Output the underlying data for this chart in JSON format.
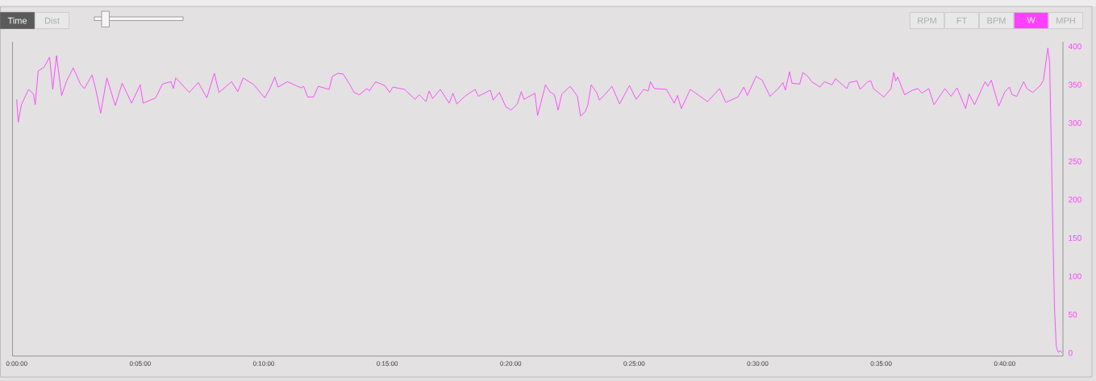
{
  "chart_data": {
    "type": "line",
    "x": [
      0,
      0.06,
      0.19,
      0.48,
      0.68,
      0.75,
      0.87,
      1.11,
      1.33,
      1.46,
      1.61,
      1.82,
      2.02,
      2.29,
      2.58,
      2.74,
      3.05,
      3.2,
      3.4,
      3.65,
      3.99,
      4.27,
      4.65,
      5.0,
      5.12,
      5.63,
      5.9,
      6.25,
      6.34,
      6.44,
      6.99,
      7.35,
      7.7,
      8.0,
      8.19,
      8.7,
      8.95,
      9.17,
      9.6,
      10.04,
      10.25,
      10.45,
      10.58,
      10.96,
      11.51,
      11.62,
      11.78,
      12.02,
      12.21,
      12.65,
      12.78,
      13.01,
      13.22,
      13.47,
      13.66,
      13.87,
      14.17,
      14.28,
      14.53,
      14.9,
      15.1,
      15.23,
      15.7,
      16.13,
      16.3,
      16.57,
      16.7,
      16.84,
      17.15,
      17.51,
      17.66,
      17.82,
      18.15,
      18.56,
      18.69,
      19.18,
      19.29,
      19.54,
      19.81,
      20.02,
      20.27,
      20.43,
      20.54,
      20.98,
      21.09,
      21.41,
      21.58,
      21.77,
      21.92,
      22.07,
      22.41,
      22.7,
      22.83,
      23.02,
      23.12,
      23.26,
      23.48,
      23.59,
      23.81,
      24.1,
      24.41,
      24.81,
      25.08,
      25.39,
      25.57,
      25.66,
      25.82,
      26.31,
      26.62,
      26.75,
      26.91,
      27.27,
      27.67,
      27.97,
      28.46,
      28.71,
      29.2,
      29.44,
      29.58,
      29.94,
      30.18,
      30.5,
      30.86,
      31.02,
      31.12,
      31.29,
      31.39,
      31.7,
      31.83,
      32.03,
      32.19,
      32.52,
      32.7,
      33.01,
      33.15,
      33.61,
      33.71,
      34.02,
      34.15,
      34.45,
      34.58,
      34.69,
      35.11,
      35.4,
      35.51,
      35.59,
      35.67,
      35.95,
      36.27,
      36.49,
      36.65,
      36.93,
      37.14,
      37.58,
      37.83,
      38.07,
      38.42,
      38.56,
      38.78,
      39.21,
      39.32,
      39.46,
      39.76,
      40.01,
      40.19,
      40.3,
      40.49,
      40.77,
      40.9,
      41.14,
      41.44,
      41.57,
      41.75,
      41.82,
      41.9,
      41.96,
      42.02,
      42.09,
      42.17,
      42.26,
      42.33
    ],
    "series": [
      {
        "name": "W",
        "color": "#ff40ff",
        "values": [
          333,
          303,
          326,
          346,
          340,
          326,
          370,
          375,
          388,
          346,
          390,
          338,
          357,
          374,
          353,
          347,
          365,
          346,
          315,
          361,
          325,
          354,
          328,
          352,
          328,
          335,
          353,
          356,
          347,
          361,
          342,
          355,
          335,
          367,
          342,
          356,
          343,
          361,
          352,
          335,
          347,
          362,
          349,
          356,
          348,
          350,
          336,
          336,
          350,
          346,
          363,
          367,
          366,
          353,
          342,
          339,
          347,
          344,
          356,
          351,
          342,
          349,
          346,
          333,
          339,
          330,
          344,
          334,
          346,
          328,
          341,
          327,
          337,
          346,
          337,
          345,
          332,
          342,
          323,
          319,
          327,
          343,
          333,
          341,
          312,
          352,
          343,
          339,
          319,
          340,
          350,
          337,
          311,
          317,
          325,
          352,
          342,
          332,
          339,
          350,
          327,
          351,
          333,
          346,
          344,
          356,
          347,
          346,
          328,
          338,
          321,
          346,
          337,
          330,
          347,
          329,
          336,
          349,
          338,
          363,
          358,
          337,
          348,
          355,
          345,
          369,
          354,
          353,
          368,
          363,
          356,
          349,
          356,
          352,
          360,
          347,
          355,
          357,
          346,
          356,
          357,
          347,
          336,
          347,
          368,
          357,
          362,
          339,
          345,
          347,
          341,
          347,
          326,
          347,
          337,
          348,
          321,
          340,
          326,
          356,
          350,
          358,
          324,
          343,
          349,
          339,
          337,
          356,
          347,
          342,
          351,
          358,
          400,
          382,
          253,
          147,
          60,
          10,
          3,
          5,
          2
        ]
      }
    ],
    "xlim": [
      -0.17,
      42.36
    ],
    "xticks": [
      {
        "value": 0,
        "label": "0:00:00"
      },
      {
        "value": 5,
        "label": "0:05:00"
      },
      {
        "value": 10,
        "label": "0:10:00"
      },
      {
        "value": 15,
        "label": "0:15:00"
      },
      {
        "value": 20,
        "label": "0:20:00"
      },
      {
        "value": 25,
        "label": "0:25:00"
      },
      {
        "value": 30,
        "label": "0:30:00"
      },
      {
        "value": 35,
        "label": "0:35:00"
      },
      {
        "value": 40,
        "label": "0:40:00"
      }
    ],
    "ylim": [
      -2,
      408
    ],
    "yticks": [
      0,
      50,
      100,
      150,
      200,
      250,
      300,
      350,
      400
    ],
    "legend": "top right",
    "annotations": [
      "Time",
      "Dist",
      "RPM",
      "FT",
      "BPM",
      "MPH"
    ]
  }
}
